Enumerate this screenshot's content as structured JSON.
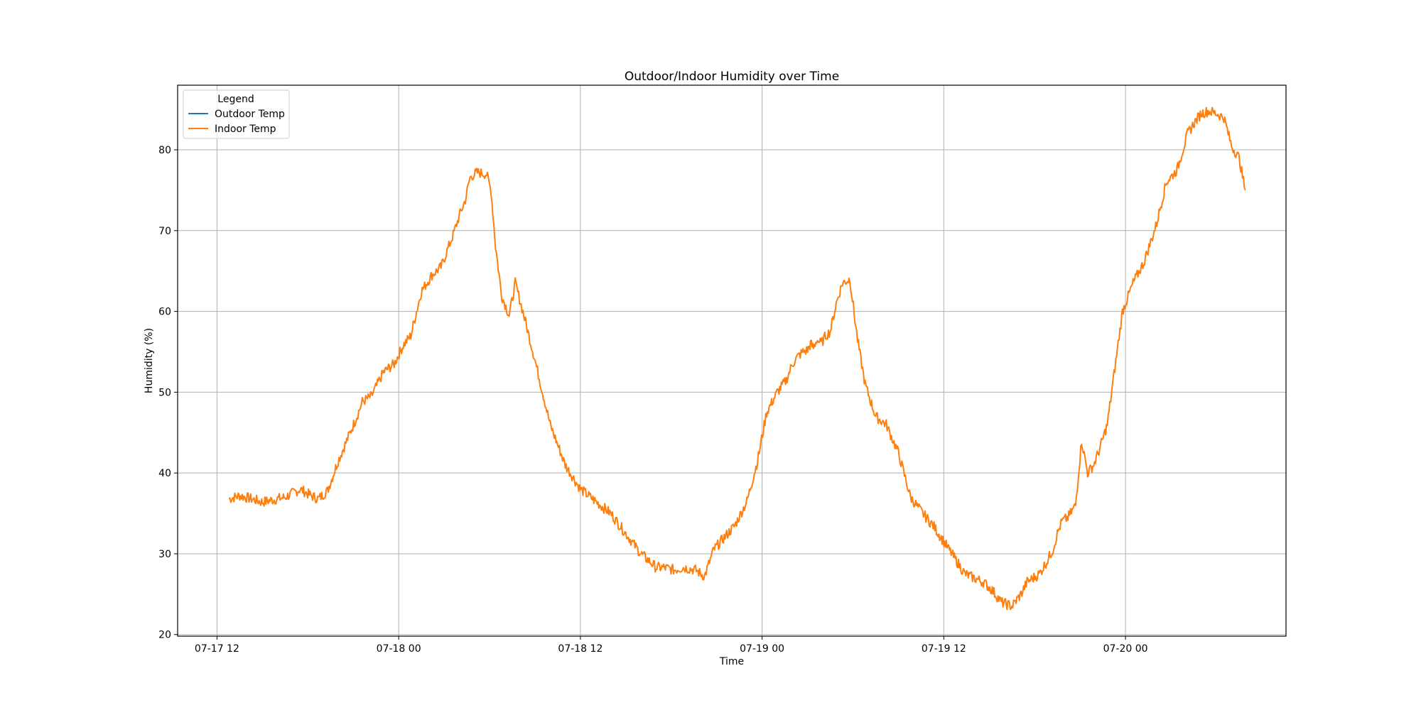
{
  "chart_data": {
    "type": "line",
    "title": "Outdoor/Indoor Humidity over Time",
    "xlabel": "Time",
    "ylabel": "Humidity (%)",
    "grid": true,
    "legend": {
      "title": "Legend",
      "placement": "top-left",
      "entries": [
        "Outdoor Temp",
        "Indoor Temp"
      ]
    },
    "x_ticks": [
      "07-17 12",
      "07-18 00",
      "07-18 12",
      "07-19 00",
      "07-19 12",
      "07-20 00"
    ],
    "x_tick_hours": [
      0,
      12,
      24,
      36,
      48,
      60
    ],
    "xlim_hours": [
      -2.6,
      70.6
    ],
    "x_origin": "2023-07-17 12:00",
    "y_ticks": [
      20,
      30,
      40,
      50,
      60,
      70,
      80
    ],
    "ylim": [
      19.8,
      88
    ],
    "series": [
      {
        "name": "Outdoor Temp",
        "color": "#1f77b4",
        "x_hours": [
          0.8,
          1.5,
          3.0,
          4.5,
          5.5,
          6.2,
          6.7,
          7.3,
          8.0,
          8.8,
          9.3,
          9.6,
          10.2,
          11.0,
          11.7,
          12.3,
          12.8,
          13.5,
          14.2,
          14.8,
          15.2,
          15.6,
          16.0,
          16.4,
          16.7,
          17.0,
          17.2,
          17.5,
          17.8,
          18.1,
          18.4,
          18.8,
          19.3,
          19.7,
          20.2,
          21.0,
          22.0,
          23.0,
          24.0,
          25.0,
          26.0,
          27.0,
          28.0,
          28.6,
          29.0,
          29.5,
          30.2,
          30.8,
          31.6,
          32.2,
          32.8,
          33.5,
          34.2,
          35.0,
          35.7,
          36.3,
          37.0,
          37.6,
          38.0,
          38.4,
          38.7,
          39.0,
          39.2,
          39.4,
          39.6,
          39.9,
          40.2,
          40.5,
          40.9,
          41.3,
          41.8,
          42.3,
          42.8,
          43.5,
          44.2,
          45.0,
          45.8,
          46.6,
          47.3,
          48.0,
          48.7,
          49.4,
          50.0,
          50.6,
          51.2,
          51.8,
          52.5,
          53.1,
          53.5,
          53.9,
          54.3,
          54.8,
          55.2,
          55.5,
          55.8,
          56.2,
          56.7,
          57.1,
          57.5,
          57.9,
          58.3,
          58.8,
          59.3,
          59.8,
          60.5,
          61.2,
          62.0,
          62.7,
          63.4,
          64.1,
          64.6,
          65.0,
          65.5,
          66.0,
          66.5,
          67.0,
          67.5,
          67.9
        ],
        "values": [
          36.8,
          37.2,
          36.4,
          37.0,
          38.0,
          37.2,
          36.8,
          37.8,
          41.5,
          45.0,
          47.3,
          48.8,
          49.5,
          52.5,
          53.5,
          55.8,
          57.0,
          62.5,
          64.5,
          65.5,
          67.5,
          69.5,
          71.8,
          73.8,
          76.5,
          77.0,
          77.2,
          77.1,
          77.0,
          75.0,
          68.0,
          62.0,
          59.5,
          63.5,
          60.0,
          54.0,
          46.0,
          41.0,
          38.0,
          36.5,
          35.0,
          32.5,
          30.0,
          29.0,
          28.3,
          28.3,
          28.0,
          28.3,
          28.0,
          27.2,
          30.5,
          32.0,
          33.5,
          36.5,
          41.5,
          47.5,
          50.0,
          51.5,
          53.5,
          54.5,
          55.0,
          55.2,
          56.0,
          55.5,
          56.5,
          56.0,
          57.0,
          57.5,
          61.0,
          63.5,
          64.0,
          56.5,
          51.0,
          47.0,
          46.0,
          42.5,
          37.0,
          35.0,
          33.5,
          31.5,
          29.5,
          27.5,
          27.0,
          26.5,
          25.5,
          24.0,
          23.5,
          25.0,
          26.5,
          27.0,
          27.5,
          29.0,
          30.5,
          32.5,
          34.0,
          34.5,
          36.0,
          44.0,
          40.0,
          41.0,
          43.0,
          46.0,
          53.0,
          60.0,
          63.5,
          66.0,
          70.5,
          76.0,
          77.5,
          82.0,
          83.5,
          84.5,
          84.8,
          84.5,
          84.0,
          80.5,
          79.0,
          75.0
        ],
        "visible": false
      },
      {
        "name": "Indoor Temp",
        "color": "#ff7f0e",
        "x_hours": [
          0.8,
          1.5,
          3.0,
          4.5,
          5.5,
          6.2,
          6.7,
          7.3,
          8.0,
          8.8,
          9.3,
          9.6,
          10.2,
          11.0,
          11.7,
          12.3,
          12.8,
          13.5,
          14.2,
          14.8,
          15.2,
          15.6,
          16.0,
          16.4,
          16.7,
          17.0,
          17.2,
          17.5,
          17.8,
          18.1,
          18.4,
          18.8,
          19.3,
          19.7,
          20.2,
          21.0,
          22.0,
          23.0,
          24.0,
          25.0,
          26.0,
          27.0,
          28.0,
          28.6,
          29.0,
          29.5,
          30.2,
          30.8,
          31.6,
          32.2,
          32.8,
          33.5,
          34.2,
          35.0,
          35.7,
          36.3,
          37.0,
          37.6,
          38.0,
          38.4,
          38.7,
          39.0,
          39.2,
          39.4,
          39.6,
          39.9,
          40.2,
          40.5,
          40.9,
          41.3,
          41.8,
          42.3,
          42.8,
          43.5,
          44.2,
          45.0,
          45.8,
          46.6,
          47.3,
          48.0,
          48.7,
          49.4,
          50.0,
          50.6,
          51.2,
          51.8,
          52.5,
          53.1,
          53.5,
          53.9,
          54.3,
          54.8,
          55.2,
          55.5,
          55.8,
          56.2,
          56.7,
          57.1,
          57.5,
          57.9,
          58.3,
          58.8,
          59.3,
          59.8,
          60.5,
          61.2,
          62.0,
          62.7,
          63.4,
          64.1,
          64.6,
          65.0,
          65.5,
          66.0,
          66.5,
          67.0,
          67.5,
          67.9
        ],
        "values": [
          36.8,
          37.2,
          36.4,
          37.0,
          38.0,
          37.2,
          36.8,
          37.8,
          41.5,
          45.0,
          47.3,
          48.8,
          49.5,
          52.5,
          53.5,
          55.8,
          57.0,
          62.5,
          64.5,
          65.5,
          67.5,
          69.5,
          71.8,
          73.8,
          76.5,
          77.0,
          77.2,
          77.1,
          77.0,
          75.0,
          68.0,
          62.0,
          59.5,
          63.5,
          60.0,
          54.0,
          46.0,
          41.0,
          38.0,
          36.5,
          35.0,
          32.5,
          30.0,
          29.0,
          28.3,
          28.3,
          28.0,
          28.3,
          28.0,
          27.2,
          30.5,
          32.0,
          33.5,
          36.5,
          41.5,
          47.5,
          50.0,
          51.5,
          53.5,
          54.5,
          55.0,
          55.2,
          56.0,
          55.5,
          56.5,
          56.0,
          57.0,
          57.5,
          61.0,
          63.5,
          64.0,
          56.5,
          51.0,
          47.0,
          46.0,
          42.5,
          37.0,
          35.0,
          33.5,
          31.5,
          29.5,
          27.5,
          27.0,
          26.5,
          25.5,
          24.0,
          23.5,
          25.0,
          26.5,
          27.0,
          27.5,
          29.0,
          30.5,
          32.5,
          34.0,
          34.5,
          36.0,
          44.0,
          40.0,
          41.0,
          43.0,
          46.0,
          53.0,
          60.0,
          63.5,
          66.0,
          70.5,
          76.0,
          77.5,
          82.0,
          83.5,
          84.5,
          84.8,
          84.5,
          84.0,
          80.5,
          79.0,
          75.0
        ],
        "visible": true
      }
    ]
  }
}
